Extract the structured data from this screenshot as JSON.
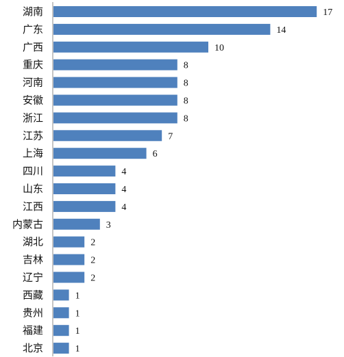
{
  "chart_data": {
    "type": "bar",
    "orientation": "horizontal",
    "categories": [
      "湖南",
      "广东",
      "广西",
      "重庆",
      "河南",
      "安徽",
      "浙江",
      "江苏",
      "上海",
      "四川",
      "山东",
      "江西",
      "内蒙古",
      "湖北",
      "吉林",
      "辽宁",
      "西藏",
      "贵州",
      "福建",
      "北京"
    ],
    "values": [
      17,
      14,
      10,
      8,
      8,
      8,
      8,
      7,
      6,
      4,
      4,
      4,
      3,
      2,
      2,
      2,
      1,
      1,
      1,
      1
    ],
    "title": "",
    "xlabel": "",
    "ylabel": "",
    "xlim": [
      0,
      17
    ],
    "grid": false,
    "legend": "none",
    "bar_color": "#4f81bd"
  }
}
